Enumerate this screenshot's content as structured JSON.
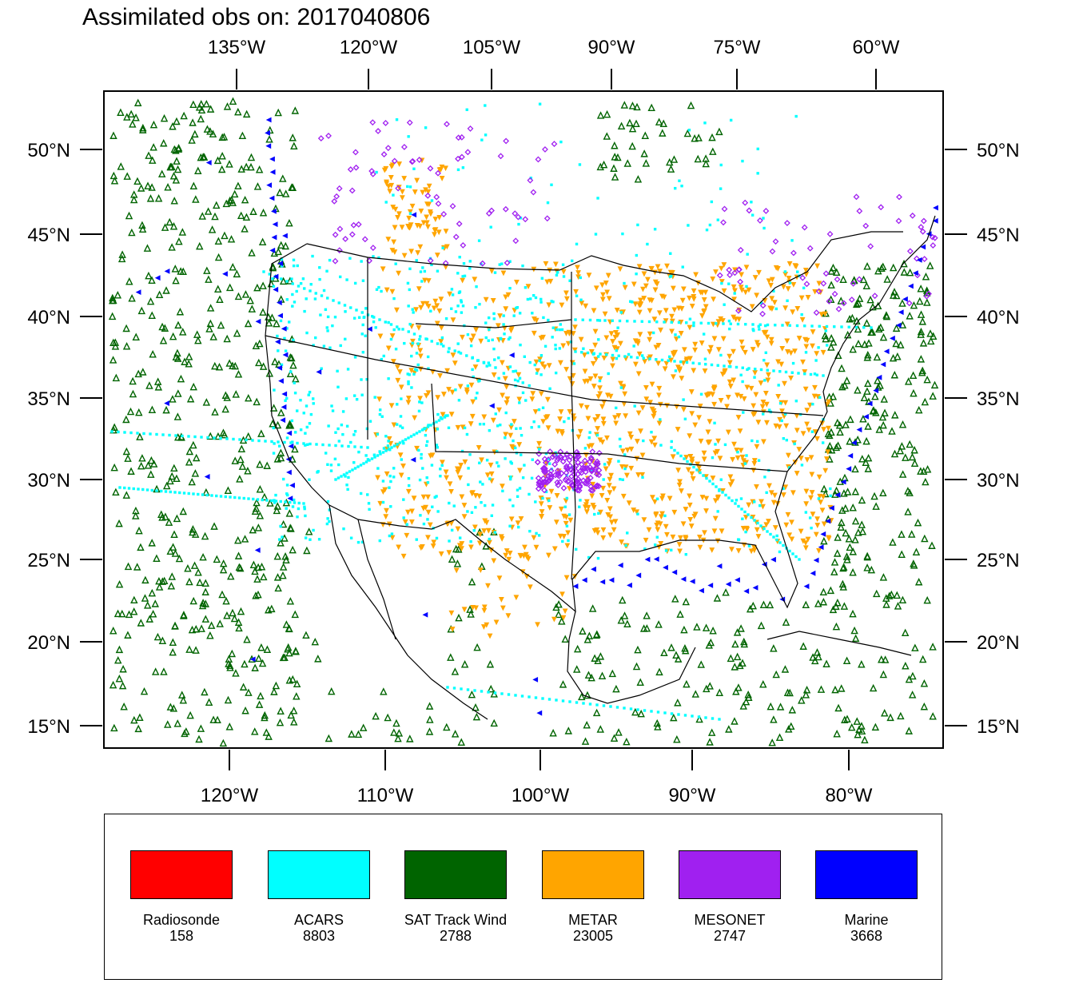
{
  "title": "Assimilated obs on: 2017040806",
  "map": {
    "top_lon_labels": [
      "135°W",
      "120°W",
      "105°W",
      "90°W",
      "75°W",
      "60°W"
    ],
    "bottom_lon_labels": [
      "120°W",
      "110°W",
      "100°W",
      "90°W",
      "80°W"
    ],
    "lat_labels": [
      "50°N",
      "45°N",
      "40°N",
      "35°N",
      "30°N",
      "25°N",
      "20°N",
      "15°N"
    ],
    "land_color": "#ffffff",
    "coastline_color": "#000000"
  },
  "legend": {
    "items": [
      {
        "label": "Radiosonde",
        "count": "158",
        "color": "#ff0000",
        "marker": "none"
      },
      {
        "label": "ACARS",
        "count": "8803",
        "color": "#00ffff",
        "marker": "square-dot"
      },
      {
        "label": "SAT Track Wind",
        "count": "2788",
        "color": "#006400",
        "marker": "triangle-up"
      },
      {
        "label": "METAR",
        "count": "23005",
        "color": "#ffa500",
        "marker": "triangle-down"
      },
      {
        "label": "MESONET",
        "count": "2747",
        "color": "#a020f0",
        "marker": "diamond"
      },
      {
        "label": "Marine",
        "count": "3668",
        "color": "#0000ff",
        "marker": "triangle-left"
      }
    ]
  }
}
